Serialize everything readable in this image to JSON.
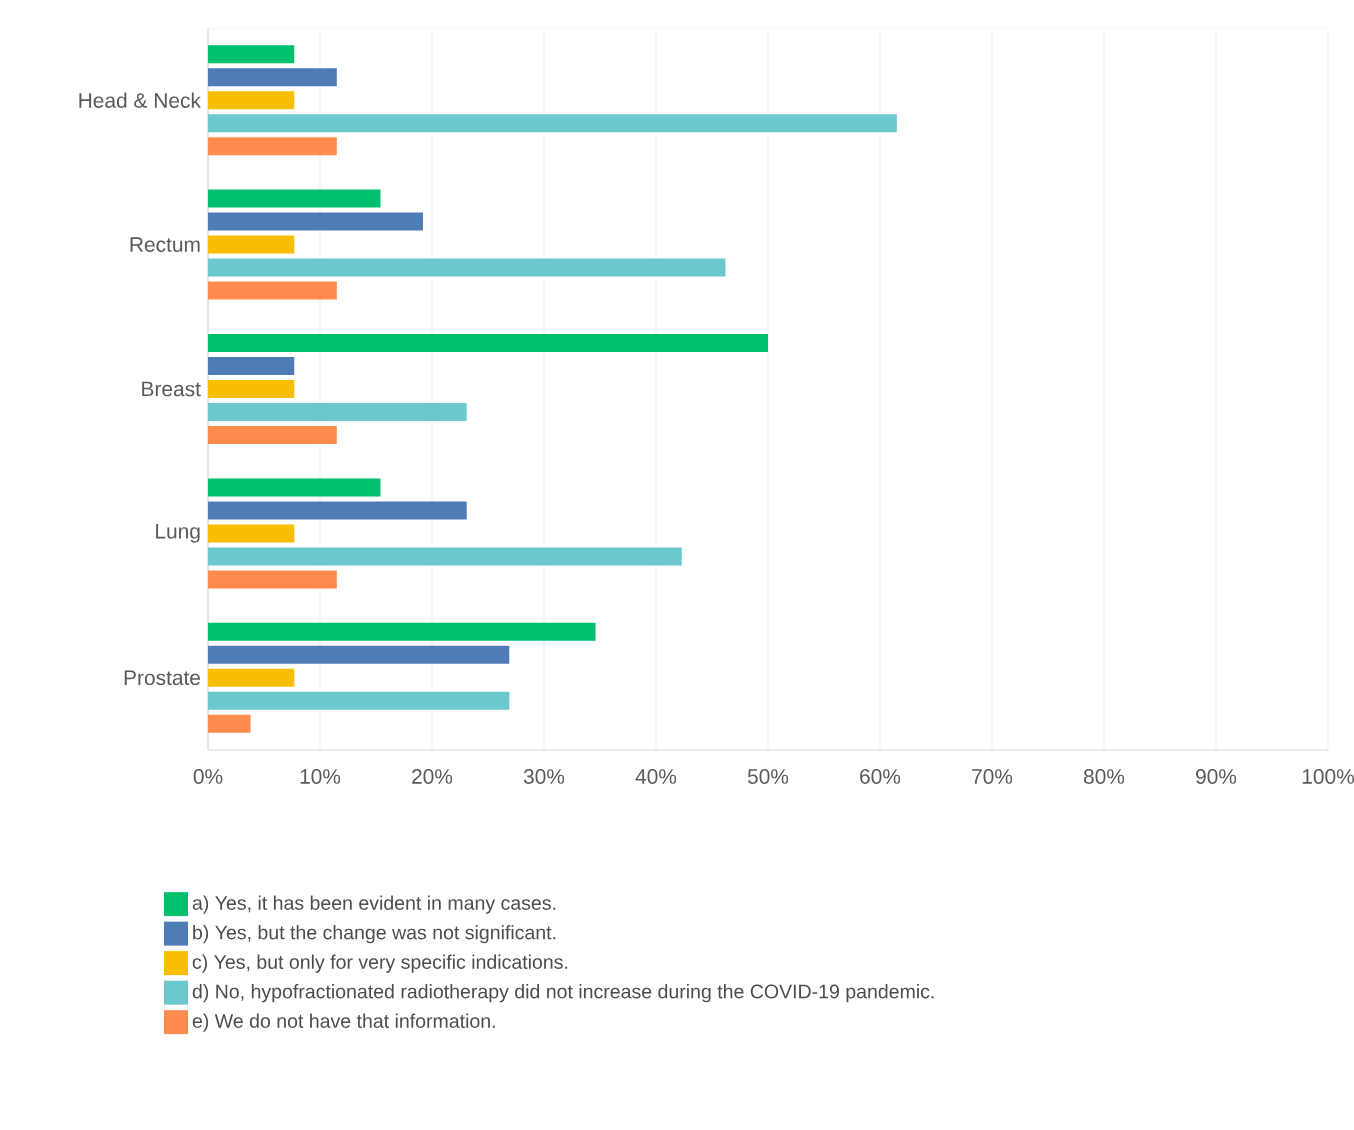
{
  "chart_data": {
    "type": "bar",
    "orientation": "horizontal",
    "categories": [
      "Head & Neck",
      "Rectum",
      "Breast",
      "Lung",
      "Prostate"
    ],
    "series": [
      {
        "name": "a) Yes, it has been evident in many cases.",
        "color": "#00bf6f",
        "values": [
          7.7,
          15.4,
          50.0,
          15.4,
          34.6
        ]
      },
      {
        "name": "b) Yes, but the change was not significant.",
        "color": "#507cb6",
        "values": [
          11.5,
          19.2,
          7.7,
          23.1,
          26.9
        ]
      },
      {
        "name": "c) Yes, but only for very specific indications.",
        "color": "#f9be00",
        "values": [
          7.7,
          7.7,
          7.7,
          7.7,
          7.7
        ]
      },
      {
        "name": "d) No, hypofractionated radiotherapy did not increase during the COVID-19 pandemic.",
        "color": "#6bc8cd",
        "values": [
          61.5,
          46.2,
          23.1,
          42.3,
          26.9
        ]
      },
      {
        "name": "e) We do not have that information.",
        "color": "#ff8b4f",
        "values": [
          11.5,
          11.5,
          11.5,
          11.5,
          3.8
        ]
      }
    ],
    "xlim": [
      0,
      100
    ],
    "xticks": [
      {
        "value": 0,
        "label": "0%"
      },
      {
        "value": 10,
        "label": "10%"
      },
      {
        "value": 20,
        "label": "20%"
      },
      {
        "value": 30,
        "label": "30%"
      },
      {
        "value": 40,
        "label": "40%"
      },
      {
        "value": 50,
        "label": "50%"
      },
      {
        "value": 60,
        "label": "60%"
      },
      {
        "value": 70,
        "label": "70%"
      },
      {
        "value": 80,
        "label": "80%"
      },
      {
        "value": 90,
        "label": "90%"
      },
      {
        "value": 100,
        "label": "100%"
      }
    ],
    "grid": "x",
    "legend": "bottom"
  }
}
